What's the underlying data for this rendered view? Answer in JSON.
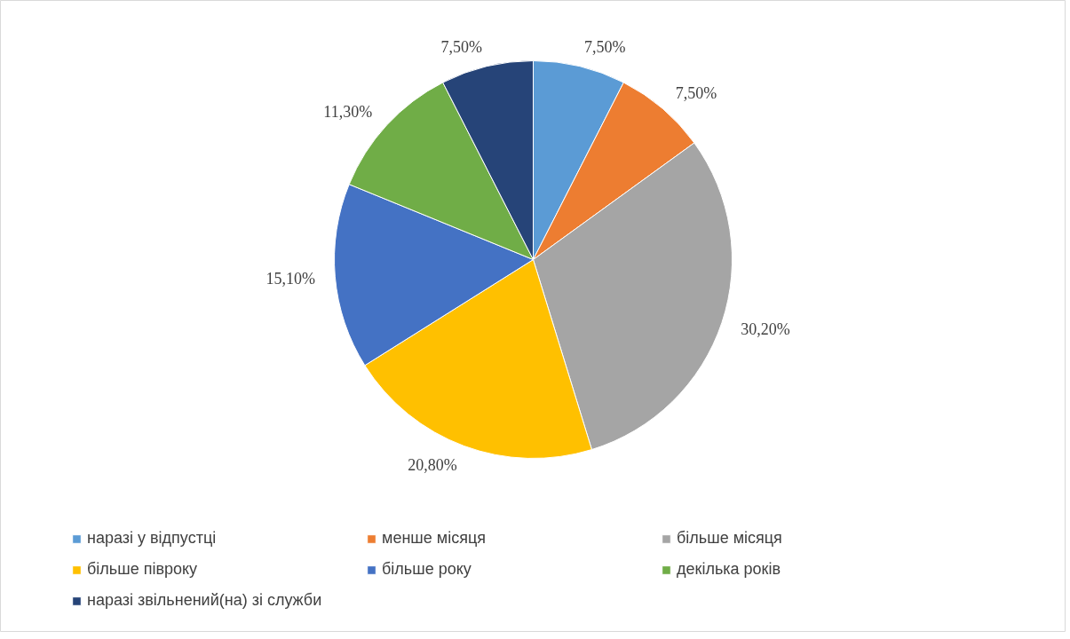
{
  "chart_data": {
    "type": "pie",
    "categories": [
      "наразі у відпустці",
      "менше місяця",
      "більше місяця",
      "більше півроку",
      "більше року",
      "декілька років",
      "наразі звільнений(на) зі служби"
    ],
    "values": [
      7.5,
      7.5,
      30.2,
      20.8,
      15.1,
      11.3,
      7.5
    ],
    "colors": [
      "#5b9bd5",
      "#ed7d31",
      "#a5a5a5",
      "#ffc000",
      "#4472c4",
      "#70ad47",
      "#264478"
    ],
    "value_labels": [
      "7,50%",
      "7,50%",
      "30,20%",
      "20,80%",
      "15,10%",
      "11,30%",
      "7,50%"
    ],
    "legend": "bottom"
  }
}
